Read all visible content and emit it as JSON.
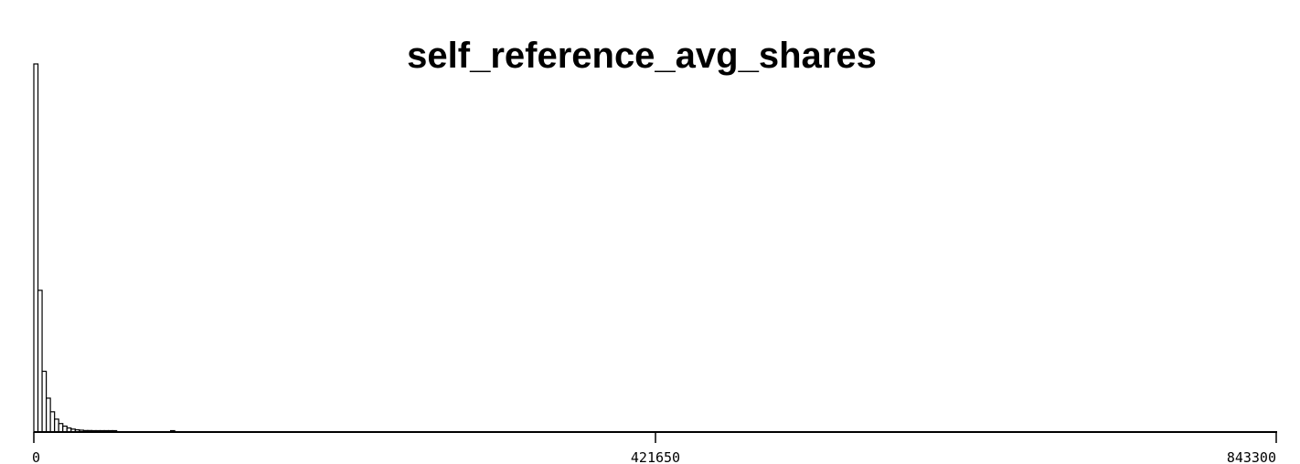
{
  "chart_data": {
    "type": "bar",
    "title": "self_reference_avg_shares",
    "xlabel": "",
    "ylabel": "",
    "xlim": [
      0,
      843300
    ],
    "x_ticks": [
      "0",
      "421650",
      "843300"
    ],
    "x_tick_values": [
      0,
      421650,
      843300
    ],
    "bin_width": 2811,
    "bin_starts": [
      0,
      2811,
      5622,
      8433,
      11244,
      14055,
      16866,
      19677,
      22488,
      25299,
      28110,
      30921,
      33732,
      36543,
      39354,
      42165,
      44976,
      47787,
      50598,
      53409,
      92763
    ],
    "counts": [
      1000,
      385,
      165,
      92,
      55,
      35,
      23,
      16,
      11,
      8,
      6,
      5,
      4,
      4,
      3,
      3,
      3,
      3,
      3,
      3,
      3
    ],
    "grid": false,
    "colors": {
      "bar_fill": "#ffffff",
      "bar_stroke": "#000000",
      "axis": "#000000"
    }
  }
}
